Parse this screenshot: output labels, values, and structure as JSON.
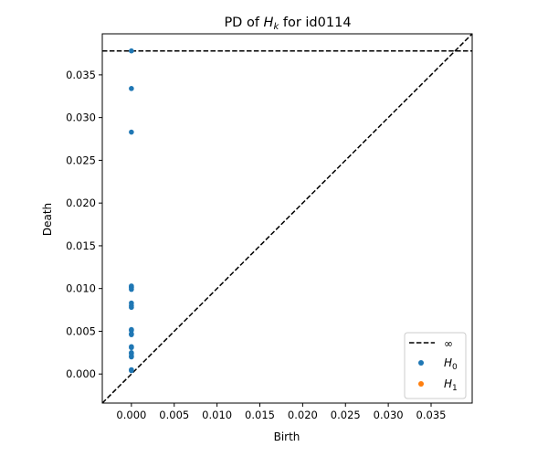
{
  "chart_data": {
    "type": "scatter",
    "title_prefix": "PD of ",
    "title_math": "H",
    "title_sub": "k",
    "title_suffix": " for id0114",
    "xlabel": "Birth",
    "ylabel": "Death",
    "xlim": [
      -0.0034,
      0.0398
    ],
    "ylim": [
      -0.0034,
      0.0398
    ],
    "x_ticks": [
      0.0,
      0.005,
      0.01,
      0.015,
      0.02,
      0.025,
      0.03,
      0.035
    ],
    "x_tick_labels": [
      "0.000",
      "0.005",
      "0.010",
      "0.015",
      "0.020",
      "0.025",
      "0.030",
      "0.035"
    ],
    "y_ticks": [
      0.0,
      0.005,
      0.01,
      0.015,
      0.02,
      0.025,
      0.03,
      0.035
    ],
    "y_tick_labels": [
      "0.000",
      "0.005",
      "0.010",
      "0.015",
      "0.020",
      "0.025",
      "0.030",
      "0.035"
    ],
    "infinity_level": 0.0378,
    "diagonal": true,
    "grid": false,
    "legend_position": "bottom-right",
    "legend": [
      {
        "label": "∞",
        "kind": "dashed-line",
        "color": "#000000"
      },
      {
        "label_math": "H",
        "label_sub": "0",
        "kind": "marker",
        "color": "#1f77b4"
      },
      {
        "label_math": "H",
        "label_sub": "1",
        "kind": "marker",
        "color": "#ff7f0e"
      }
    ],
    "series": [
      {
        "color": "#1f77b4",
        "x": [
          0,
          0,
          0,
          0,
          0,
          0,
          0,
          0,
          0,
          0,
          0,
          0,
          0,
          0,
          0,
          0,
          0,
          0,
          0,
          0,
          0,
          0
        ],
        "y": [
          0.0378,
          0.0334,
          0.0283,
          0.0103,
          0.0102,
          0.0101,
          0.0099,
          0.0083,
          0.008,
          0.0078,
          0.0052,
          0.0051,
          0.0047,
          0.0046,
          0.0032,
          0.0031,
          0.0025,
          0.0024,
          0.0021,
          0.002,
          0.0005,
          0.0004
        ]
      },
      {
        "color": "#ff7f0e",
        "x": [],
        "y": []
      }
    ]
  }
}
